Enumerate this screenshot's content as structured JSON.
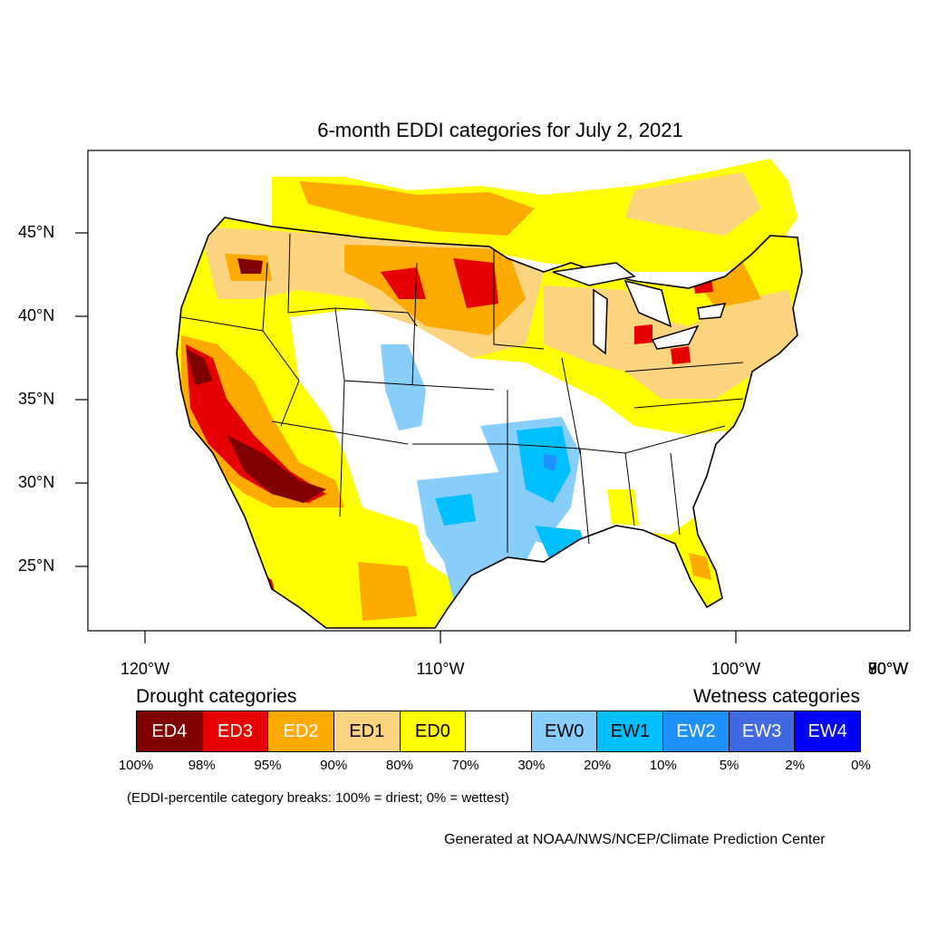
{
  "title": "6-month EDDI categories for July 2, 2021",
  "lat_labels": [
    {
      "label": "45°N",
      "lat": 45
    },
    {
      "label": "40°N",
      "lat": 40
    },
    {
      "label": "35°N",
      "lat": 35
    },
    {
      "label": "30°N",
      "lat": 30
    },
    {
      "label": "25°N",
      "lat": 25
    }
  ],
  "lon_labels": [
    {
      "label": "120°W",
      "lon": -120
    },
    {
      "label": "110°W",
      "lon": -110
    },
    {
      "label": "100°W",
      "lon": -100
    },
    {
      "label": "90°W",
      "lon": -90
    },
    {
      "label": "80°W",
      "lon": -80
    },
    {
      "label": "70°W",
      "lon": -70
    }
  ],
  "legend": {
    "drought_heading": "Drought categories",
    "wetness_heading": "Wetness categories",
    "categories": [
      {
        "label": "ED4",
        "color": "#800000",
        "text_color": "#ffffff"
      },
      {
        "label": "ED3",
        "color": "#e60000",
        "text_color": "#ffffff"
      },
      {
        "label": "ED2",
        "color": "#ffaa00",
        "text_color": "#ffffff"
      },
      {
        "label": "ED1",
        "color": "#fcd37f",
        "text_color": "#000000"
      },
      {
        "label": "ED0",
        "color": "#ffff00",
        "text_color": "#000000"
      },
      {
        "label": "",
        "color": "#ffffff",
        "text_color": "#000000"
      },
      {
        "label": "EW0",
        "color": "#87cefa",
        "text_color": "#000000"
      },
      {
        "label": "EW1",
        "color": "#00bfff",
        "text_color": "#000000"
      },
      {
        "label": "EW2",
        "color": "#1e90ff",
        "text_color": "#ffffff"
      },
      {
        "label": "EW3",
        "color": "#4169e1",
        "text_color": "#ffffff"
      },
      {
        "label": "EW4",
        "color": "#0000ff",
        "text_color": "#ffffff"
      }
    ],
    "breaks": [
      "100%",
      "98%",
      "95%",
      "90%",
      "80%",
      "70%",
      "30%",
      "20%",
      "10%",
      "5%",
      "2%",
      "0%"
    ]
  },
  "footnote": "(EDDI-percentile category breaks: 100% = driest; 0% = wettest)",
  "credit": "Generated at NOAA/NWS/NCEP/Climate Prediction Center",
  "colors": {
    "ED4": "#800000",
    "ED3": "#e60000",
    "ED2": "#ffaa00",
    "ED1": "#fcd37f",
    "ED0": "#ffff00",
    "EW0": "#87cefa",
    "EW1": "#00bfff",
    "EW2": "#1e90ff"
  }
}
